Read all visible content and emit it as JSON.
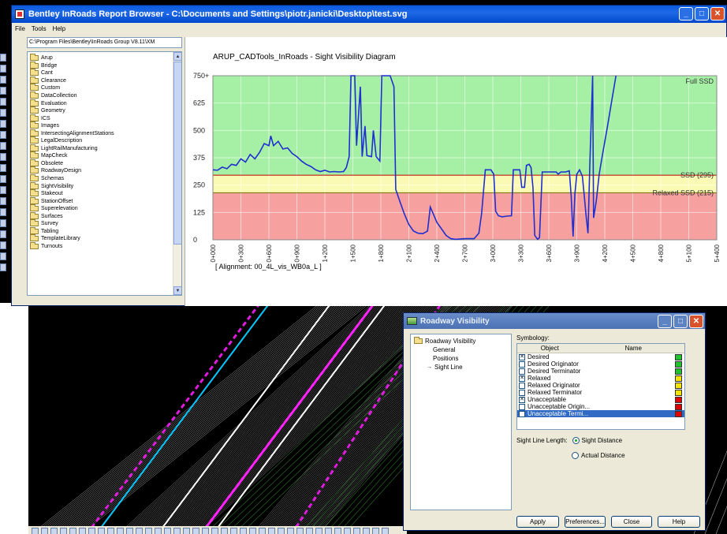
{
  "report_browser": {
    "title": "Bentley InRoads Report Browser - C:\\Documents and Settings\\piotr.janicki\\Desktop\\test.svg",
    "menu": [
      "File",
      "Tools",
      "Help"
    ],
    "path": "C:\\Program Files\\Bentley\\InRoads Group V8.11\\XM",
    "folders": [
      "Arup",
      "Bridge",
      "Cant",
      "Clearance",
      "Custom",
      "DataCollection",
      "Evaluation",
      "Geometry",
      "ICS",
      "Images",
      "IntersectingAlignmentStations",
      "LegalDescription",
      "LightRailManufacturing",
      "MapCheck",
      "Obsolete",
      "RoadwayDesign",
      "Schemas",
      "SightVisibility",
      "Stakeout",
      "StationOffset",
      "Superelevation",
      "Surfaces",
      "Survey",
      "Tabling",
      "TemplateLibrary",
      "Turnouts"
    ],
    "caption": "[ Alignment: 00_4L_vis_WB0a_L ]"
  },
  "chart_data": {
    "type": "line",
    "title": "ARUP_CADTools_InRoads - Sight Visibility Diagram",
    "xlabel": "",
    "ylabel": "",
    "x_ticks": [
      "0+000",
      "0+300",
      "0+600",
      "0+900",
      "1+200",
      "1+500",
      "1+800",
      "2+100",
      "2+400",
      "2+700",
      "3+000",
      "3+300",
      "3+600",
      "3+900",
      "4+200",
      "4+500",
      "4+800",
      "5+100",
      "5+400"
    ],
    "y_ticks": [
      "0",
      "125",
      "250",
      "375",
      "500",
      "625",
      "750+"
    ],
    "ylim": [
      0,
      750
    ],
    "xlim": [
      0,
      5400
    ],
    "bands": [
      {
        "label": "Full SSD",
        "from": 295,
        "to": 750,
        "color": "#a6f0a6"
      },
      {
        "label": "SSD (295)",
        "from": 215,
        "to": 295,
        "color": "#fafab4"
      },
      {
        "label": "Relaxed SSD (215)",
        "from": 0,
        "to": 215,
        "color": "#f7a0a0"
      }
    ],
    "threshold_lines": [
      {
        "value": 295,
        "color": "#c00000"
      },
      {
        "value": 215,
        "color": "#707000"
      }
    ],
    "series": [
      {
        "color": "#1f2fd0",
        "points": [
          [
            0,
            320
          ],
          [
            50,
            318
          ],
          [
            100,
            332
          ],
          [
            150,
            325
          ],
          [
            200,
            345
          ],
          [
            250,
            340
          ],
          [
            300,
            370
          ],
          [
            350,
            355
          ],
          [
            400,
            390
          ],
          [
            450,
            370
          ],
          [
            500,
            400
          ],
          [
            550,
            440
          ],
          [
            600,
            430
          ],
          [
            620,
            475
          ],
          [
            650,
            430
          ],
          [
            700,
            450
          ],
          [
            750,
            415
          ],
          [
            800,
            420
          ],
          [
            850,
            395
          ],
          [
            900,
            380
          ],
          [
            950,
            360
          ],
          [
            1000,
            345
          ],
          [
            1050,
            335
          ],
          [
            1100,
            320
          ],
          [
            1150,
            312
          ],
          [
            1200,
            318
          ],
          [
            1250,
            310
          ],
          [
            1300,
            312
          ],
          [
            1350,
            310
          ],
          [
            1400,
            312
          ],
          [
            1430,
            330
          ],
          [
            1460,
            380
          ],
          [
            1480,
            750
          ],
          [
            1520,
            750
          ],
          [
            1540,
            430
          ],
          [
            1580,
            700
          ],
          [
            1600,
            380
          ],
          [
            1630,
            520
          ],
          [
            1650,
            385
          ],
          [
            1700,
            380
          ],
          [
            1720,
            500
          ],
          [
            1750,
            380
          ],
          [
            1790,
            360
          ],
          [
            1810,
            750
          ],
          [
            1860,
            750
          ],
          [
            1900,
            750
          ],
          [
            1940,
            700
          ],
          [
            1960,
            230
          ],
          [
            2000,
            180
          ],
          [
            2050,
            120
          ],
          [
            2100,
            70
          ],
          [
            2150,
            40
          ],
          [
            2200,
            30
          ],
          [
            2250,
            28
          ],
          [
            2300,
            40
          ],
          [
            2330,
            150
          ],
          [
            2360,
            120
          ],
          [
            2400,
            80
          ],
          [
            2450,
            50
          ],
          [
            2500,
            20
          ],
          [
            2550,
            5
          ],
          [
            2600,
            2
          ],
          [
            2700,
            5
          ],
          [
            2800,
            5
          ],
          [
            2850,
            30
          ],
          [
            2880,
            120
          ],
          [
            2920,
            320
          ],
          [
            2980,
            320
          ],
          [
            3010,
            300
          ],
          [
            3030,
            130
          ],
          [
            3060,
            110
          ],
          [
            3100,
            105
          ],
          [
            3150,
            108
          ],
          [
            3200,
            110
          ],
          [
            3220,
            320
          ],
          [
            3290,
            320
          ],
          [
            3310,
            240
          ],
          [
            3340,
            240
          ],
          [
            3360,
            340
          ],
          [
            3390,
            345
          ],
          [
            3410,
            330
          ],
          [
            3430,
            240
          ],
          [
            3450,
            20
          ],
          [
            3480,
            2
          ],
          [
            3500,
            10
          ],
          [
            3530,
            310
          ],
          [
            3580,
            310
          ],
          [
            3620,
            310
          ],
          [
            3650,
            310
          ],
          [
            3680,
            310
          ],
          [
            3700,
            300
          ],
          [
            3730,
            310
          ],
          [
            3780,
            310
          ],
          [
            3820,
            315
          ],
          [
            3840,
            200
          ],
          [
            3860,
            15
          ],
          [
            3880,
            210
          ],
          [
            3900,
            300
          ],
          [
            3930,
            320
          ],
          [
            3960,
            290
          ],
          [
            3980,
            200
          ],
          [
            4000,
            110
          ],
          [
            4020,
            30
          ],
          [
            4040,
            350
          ],
          [
            4070,
            750
          ],
          [
            4080,
            100
          ],
          [
            4110,
            180
          ],
          [
            4140,
            300
          ],
          [
            4180,
            400
          ],
          [
            4230,
            520
          ],
          [
            4280,
            650
          ],
          [
            4320,
            750
          ]
        ]
      }
    ]
  },
  "roadway_visibility": {
    "title": "Roadway Visibility",
    "tree": {
      "root": "Roadway Visibility",
      "children": [
        "General",
        "Positions",
        "Sight Line"
      ]
    },
    "symbology_label": "Symbology:",
    "columns": {
      "object": "Object",
      "name": "Name"
    },
    "rows": [
      {
        "object": "Desired",
        "checked": true,
        "color": "#22c22c"
      },
      {
        "object": "Desired Originator",
        "checked": false,
        "color": "#22c22c"
      },
      {
        "object": "Desired Terminator",
        "checked": false,
        "color": "#22c22c"
      },
      {
        "object": "Relaxed",
        "checked": true,
        "color": "#f4e400"
      },
      {
        "object": "Relaxed Originator",
        "checked": false,
        "color": "#f4e400"
      },
      {
        "object": "Relaxed Terminator",
        "checked": false,
        "color": "#f4e400"
      },
      {
        "object": "Unacceptable",
        "checked": true,
        "color": "#e00000"
      },
      {
        "object": "Unacceptable Origin...",
        "checked": false,
        "color": "#e00000"
      },
      {
        "object": "Unacceptable Termi...",
        "checked": false,
        "color": "#e00000",
        "selected": true
      }
    ],
    "sight_line_length_label": "Sight Line Length:",
    "option_sight": "Sight Distance",
    "option_actual": "Actual Distance",
    "buttons": {
      "apply": "Apply",
      "preferences": "Preferences...",
      "close": "Close",
      "help": "Help"
    }
  }
}
